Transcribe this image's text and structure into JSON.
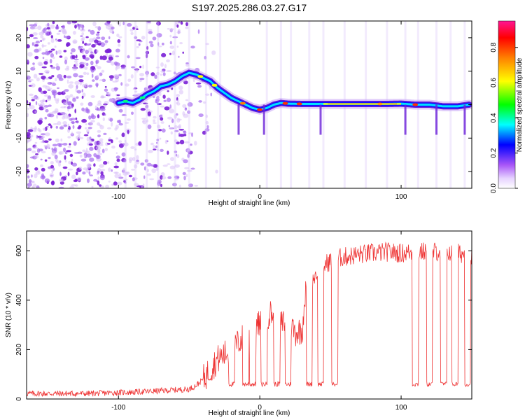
{
  "title": "S197.2025.286.03.27.G17",
  "chart_data": [
    {
      "type": "heatmap",
      "name": "spectrogram",
      "xlabel": "Height of straight line (km)",
      "ylabel": "Frequency (Hz)",
      "xlim": [
        -165,
        150
      ],
      "ylim": [
        -25,
        25
      ],
      "x_ticks": [
        -100,
        0,
        100
      ],
      "y_ticks": [
        -20,
        -10,
        0,
        10,
        20
      ],
      "colorbar": {
        "label": "Normalized spectral amplitude",
        "range": [
          0.0,
          0.95
        ],
        "ticks": [
          "0.0",
          "0.2",
          "0.4",
          "0.6",
          "0.8"
        ],
        "colors": [
          "#ffffff",
          "#a855f7",
          "#0000ff",
          "#00ffff",
          "#00ff00",
          "#ffff00",
          "#ff8000",
          "#ff0000",
          "#ff1493"
        ]
      },
      "ridge_frequency": {
        "x": [
          -100,
          -95,
          -90,
          -85,
          -80,
          -75,
          -70,
          -65,
          -60,
          -55,
          -50,
          -45,
          -40,
          -35,
          -30,
          -25,
          -20,
          -15,
          -10,
          -5,
          0,
          5,
          10,
          15,
          20,
          30,
          40,
          50,
          60,
          70,
          80,
          90,
          100,
          110,
          120,
          130,
          140,
          148
        ],
        "freq": [
          0.5,
          1.0,
          0.5,
          1.5,
          3.0,
          4.0,
          5.5,
          6.0,
          7.0,
          8.5,
          9.5,
          9.0,
          8.0,
          7.0,
          5.0,
          3.5,
          2.0,
          1.0,
          0.0,
          -1.0,
          -1.5,
          -1.0,
          0.0,
          0.5,
          0.3,
          0.2,
          0.2,
          0.2,
          0.2,
          0.2,
          0.2,
          0.2,
          0.3,
          0.0,
          0.0,
          -0.5,
          -0.5,
          0.0
        ]
      }
    },
    {
      "type": "line",
      "name": "snr",
      "xlabel": "Height of straight line (km)",
      "ylabel": "SNR (10 * v/v)",
      "xlim": [
        -165,
        150
      ],
      "ylim": [
        0,
        680
      ],
      "x_ticks": [
        -100,
        0,
        100
      ],
      "y_ticks": [
        0,
        200,
        400,
        600
      ],
      "color": "#ee3333",
      "envelope": {
        "x": [
          -165,
          -120,
          -80,
          -50,
          -45,
          -40,
          -35,
          -30,
          -25,
          -20,
          -15,
          -10,
          -5,
          0,
          5,
          10,
          15,
          20,
          25,
          30,
          32,
          35,
          40,
          45,
          50,
          55,
          60,
          70,
          80,
          90,
          100,
          110,
          120,
          130,
          140,
          150
        ],
        "y": [
          22,
          22,
          30,
          40,
          55,
          80,
          120,
          160,
          180,
          200,
          230,
          260,
          290,
          300,
          340,
          350,
          300,
          330,
          270,
          280,
          420,
          460,
          510,
          540,
          560,
          570,
          575,
          585,
          590,
          595,
          590,
          595,
          595,
          600,
          590,
          585
        ]
      },
      "dropouts_x": [
        -20,
        -10,
        -5,
        3,
        12,
        20,
        35,
        43,
        53,
        110,
        120,
        130,
        138,
        147
      ],
      "dropout_level": 60
    }
  ]
}
